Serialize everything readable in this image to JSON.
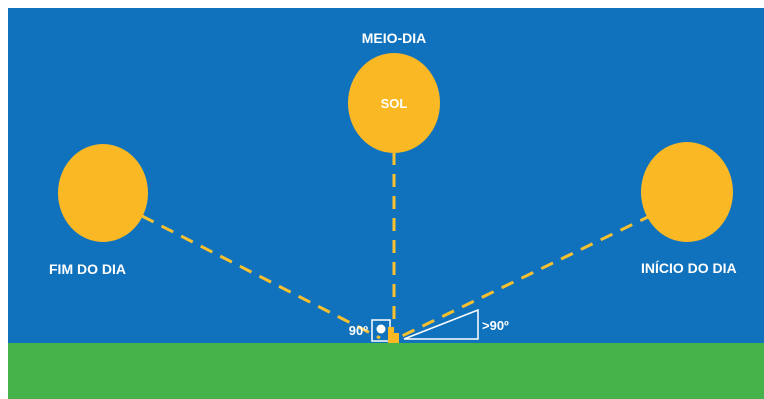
{
  "labels": {
    "noon": "MEIO-DIA",
    "sun": "SOL",
    "end_of_day": "FIM DO DIA",
    "start_of_day": "INÍCIO DO DIA",
    "angle_right": "90º",
    "angle_obtuse": ">90º"
  },
  "colors": {
    "sky": "#1072bc",
    "ground": "#45b349",
    "sun": "#fbb825",
    "ray": "#fbc02d",
    "line": "#ffffff"
  }
}
